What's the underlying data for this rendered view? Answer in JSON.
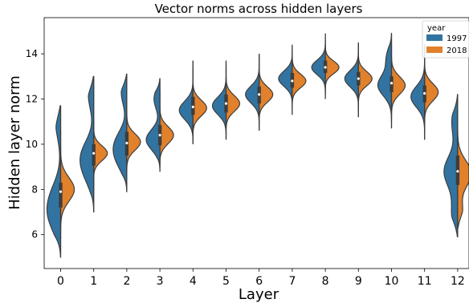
{
  "chart_data": {
    "type": "violin",
    "title": "Vector norms across hidden layers",
    "xlabel": "Layer",
    "ylabel": "Hidden layer norm",
    "ylim": [
      4.5,
      15.6
    ],
    "yticks": [
      6,
      8,
      10,
      12,
      14
    ],
    "categories": [
      "0",
      "1",
      "2",
      "3",
      "4",
      "5",
      "6",
      "7",
      "8",
      "9",
      "10",
      "11",
      "12"
    ],
    "split": true,
    "grid": false,
    "legend": {
      "title": "year",
      "position": "top-right",
      "entries": [
        {
          "label": "1997",
          "color": "#3274a1"
        },
        {
          "label": "2018",
          "color": "#e1812c"
        }
      ]
    },
    "series": [
      {
        "name": "1997",
        "color": "#3274a1",
        "violins": [
          {
            "min": 5.0,
            "max": 11.7,
            "median": 7.9,
            "q1": 6.9,
            "q3": 8.3,
            "modes": [
              [
                6.7,
                0.65
              ],
              [
                7.7,
                0.55
              ],
              [
                11.0,
                0.35
              ]
            ]
          },
          {
            "min": 7.0,
            "max": 13.0,
            "median": 9.6,
            "q1": 8.9,
            "q3": 10.0,
            "modes": [
              [
                8.7,
                0.45
              ],
              [
                9.6,
                0.65
              ],
              [
                12.2,
                0.35
              ]
            ]
          },
          {
            "min": 7.9,
            "max": 13.1,
            "median": 10.0,
            "q1": 9.3,
            "q3": 10.6,
            "modes": [
              [
                9.3,
                0.5
              ],
              [
                10.1,
                0.6
              ],
              [
                12.3,
                0.35
              ]
            ]
          },
          {
            "min": 8.8,
            "max": 12.9,
            "median": 10.4,
            "q1": 9.9,
            "q3": 10.9,
            "modes": [
              [
                10.2,
                0.7
              ],
              [
                12.0,
                0.3
              ]
            ]
          },
          {
            "min": 10.0,
            "max": 13.7,
            "median": 11.6,
            "q1": 11.3,
            "q3": 12.1,
            "modes": [
              [
                11.5,
                0.75
              ]
            ]
          },
          {
            "min": 10.2,
            "max": 13.7,
            "median": 11.8,
            "q1": 11.4,
            "q3": 12.2,
            "modes": [
              [
                11.7,
                0.8
              ]
            ]
          },
          {
            "min": 10.6,
            "max": 14.0,
            "median": 12.2,
            "q1": 11.8,
            "q3": 12.5,
            "modes": [
              [
                12.2,
                0.8
              ]
            ]
          },
          {
            "min": 11.3,
            "max": 14.4,
            "median": 12.8,
            "q1": 12.5,
            "q3": 13.1,
            "modes": [
              [
                12.9,
                0.85
              ]
            ]
          },
          {
            "min": 12.0,
            "max": 14.9,
            "median": 13.4,
            "q1": 13.2,
            "q3": 13.7,
            "modes": [
              [
                13.4,
                0.9
              ]
            ]
          },
          {
            "min": 11.2,
            "max": 14.5,
            "median": 12.9,
            "q1": 12.6,
            "q3": 13.2,
            "modes": [
              [
                12.9,
                0.85
              ]
            ]
          },
          {
            "min": 10.7,
            "max": 14.9,
            "median": 12.7,
            "q1": 12.3,
            "q3": 13.0,
            "modes": [
              [
                12.6,
                0.8
              ],
              [
                13.8,
                0.3
              ]
            ]
          },
          {
            "min": 10.2,
            "max": 14.4,
            "median": 12.2,
            "q1": 11.8,
            "q3": 12.6,
            "modes": [
              [
                12.1,
                0.85
              ]
            ]
          },
          {
            "min": 5.9,
            "max": 12.2,
            "median": 8.8,
            "q1": 8.2,
            "q3": 9.5,
            "modes": [
              [
                8.8,
                0.7
              ],
              [
                6.9,
                0.3
              ],
              [
                11.0,
                0.3
              ]
            ]
          }
        ]
      },
      {
        "name": "2018",
        "color": "#e1812c",
        "violins": [
          {
            "min": 5.8,
            "max": 10.6,
            "median": 7.9,
            "q1": 7.5,
            "q3": 8.3,
            "modes": [
              [
                8.0,
                0.7
              ]
            ]
          },
          {
            "min": 8.0,
            "max": 11.0,
            "median": 9.6,
            "q1": 9.2,
            "q3": 10.0,
            "modes": [
              [
                9.6,
                0.85
              ]
            ]
          },
          {
            "min": 8.7,
            "max": 12.0,
            "median": 10.1,
            "q1": 9.7,
            "q3": 10.5,
            "modes": [
              [
                10.1,
                0.85
              ]
            ]
          },
          {
            "min": 9.0,
            "max": 12.4,
            "median": 10.4,
            "q1": 10.0,
            "q3": 10.8,
            "modes": [
              [
                10.4,
                0.85
              ]
            ]
          },
          {
            "min": 10.2,
            "max": 13.4,
            "median": 11.7,
            "q1": 11.3,
            "q3": 12.1,
            "modes": [
              [
                11.6,
                0.85
              ]
            ]
          },
          {
            "min": 10.3,
            "max": 13.5,
            "median": 11.8,
            "q1": 11.4,
            "q3": 12.2,
            "modes": [
              [
                11.8,
                0.85
              ]
            ]
          },
          {
            "min": 10.8,
            "max": 13.9,
            "median": 12.2,
            "q1": 11.8,
            "q3": 12.6,
            "modes": [
              [
                12.2,
                0.85
              ]
            ]
          },
          {
            "min": 11.5,
            "max": 14.3,
            "median": 12.8,
            "q1": 12.5,
            "q3": 13.2,
            "modes": [
              [
                12.8,
                0.85
              ]
            ]
          },
          {
            "min": 12.2,
            "max": 14.7,
            "median": 13.4,
            "q1": 13.1,
            "q3": 13.7,
            "modes": [
              [
                13.4,
                0.9
              ]
            ]
          },
          {
            "min": 11.5,
            "max": 14.4,
            "median": 12.9,
            "q1": 12.6,
            "q3": 13.2,
            "modes": [
              [
                12.9,
                0.85
              ]
            ]
          },
          {
            "min": 11.0,
            "max": 14.5,
            "median": 12.7,
            "q1": 12.3,
            "q3": 13.0,
            "modes": [
              [
                12.6,
                0.85
              ]
            ]
          },
          {
            "min": 10.5,
            "max": 14.0,
            "median": 12.3,
            "q1": 11.9,
            "q3": 12.6,
            "modes": [
              [
                12.3,
                0.9
              ]
            ]
          },
          {
            "min": 6.3,
            "max": 11.5,
            "median": 8.8,
            "q1": 8.2,
            "q3": 9.5,
            "modes": [
              [
                8.7,
                0.85
              ],
              [
                7.0,
                0.3
              ]
            ]
          }
        ]
      }
    ]
  }
}
